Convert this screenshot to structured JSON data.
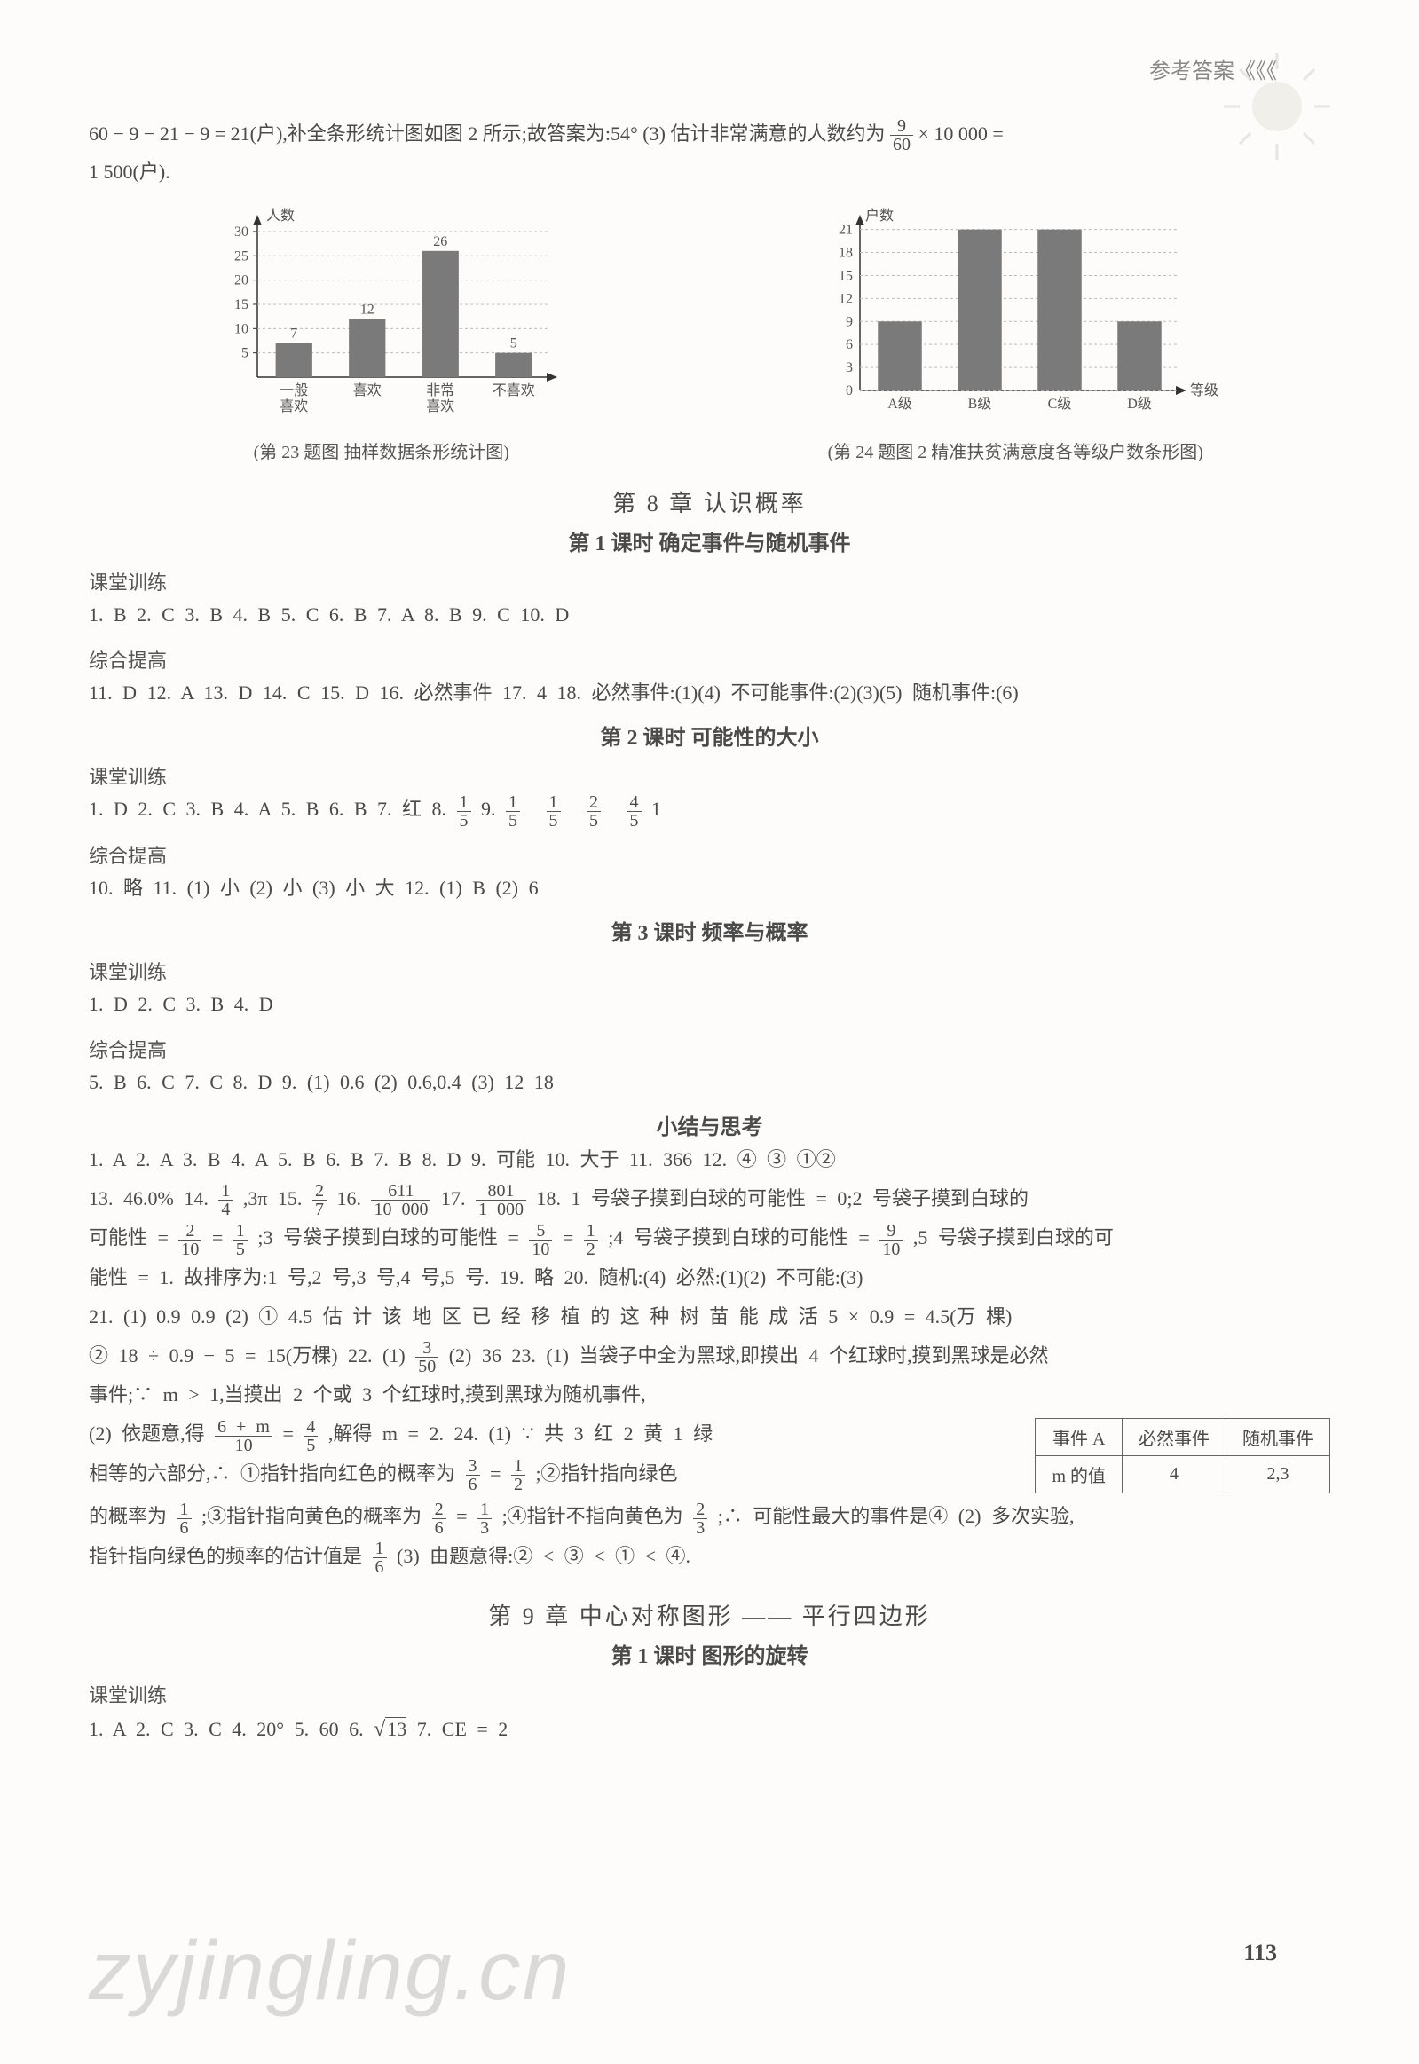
{
  "header": {
    "title": "参考答案《《《"
  },
  "intro": {
    "line1_a": "60 − 9 − 21 − 9 = 21(户),补全条形统计图如图 2 所示;故答案为:54°   (3) 估计非常满意的人数约为",
    "frac": {
      "num": "9",
      "den": "60"
    },
    "line1_b": " × 10 000 =",
    "line2": "1 500(户)."
  },
  "chart1": {
    "type": "bar",
    "y_label": "人数",
    "categories": [
      "一般\n喜欢",
      "喜欢",
      "非常\n喜欢",
      "不喜欢"
    ],
    "values": [
      7,
      12,
      26,
      5
    ],
    "value_labels": [
      "7",
      "12",
      "26",
      "5"
    ],
    "yticks": [
      5,
      10,
      15,
      20,
      25,
      30
    ],
    "ylim": [
      0,
      32
    ],
    "bar_color": "#7a7a7a",
    "axis_color": "#333333",
    "grid_color": "#bbbbbb",
    "font_size": 16,
    "caption": "(第 23 题图    抽样数据条形统计图)"
  },
  "chart2": {
    "type": "bar",
    "y_label": "户数",
    "x_label": "等级",
    "categories": [
      "A级",
      "B级",
      "C级",
      "D级"
    ],
    "values": [
      9,
      21,
      21,
      9
    ],
    "yticks": [
      0,
      3,
      6,
      9,
      12,
      15,
      18,
      21
    ],
    "ylim": [
      0,
      22
    ],
    "bar_color": "#7a7a7a",
    "axis_color": "#333333",
    "grid_color": "#bbbbbb",
    "font_size": 16,
    "caption": "(第 24 题图 2    精准扶贫满意度各等级户数条形图)"
  },
  "chapter8": {
    "title": "第 8 章    认识概率",
    "s1": {
      "title": "第 1 课时    确定事件与随机事件",
      "ktxl_label": "课堂训练",
      "ktxl": "1. B   2. C   3. B   4. B   5. C   6. B   7. A   8. B   9. C   10. D",
      "zhtg_label": "综合提高",
      "zhtg": "11. D   12. A   13. D   14. C   15. D   16. 必然事件   17. 4   18. 必然事件:(1)(4)    不可能事件:(2)(3)(5)    随机事件:(6)"
    },
    "s2": {
      "title": "第 2 课时    可能性的大小",
      "ktxl_label": "课堂训练",
      "ktxl_a": "1. D   2. C   3. B   4. A   5. B   6. B   7. 红   8. ",
      "f1": {
        "n": "1",
        "d": "5"
      },
      "ktxl_b": "   9. ",
      "f2": {
        "n": "1",
        "d": "5"
      },
      "f3": {
        "n": "1",
        "d": "5"
      },
      "f4": {
        "n": "2",
        "d": "5"
      },
      "f5": {
        "n": "4",
        "d": "5"
      },
      "ktxl_c": "   1",
      "zhtg_label": "综合提高",
      "zhtg": "10. 略   11. (1) 小   (2) 小   (3) 小    大   12. (1) B   (2) 6"
    },
    "s3": {
      "title": "第 3 课时    频率与概率",
      "ktxl_label": "课堂训练",
      "ktxl": "1. D   2. C   3. B   4. D",
      "zhtg_label": "综合提高",
      "zhtg": "5. B   6. C   7. C   8. D   9. (1) 0.6   (2) 0.6,0.4   (3) 12   18"
    },
    "s4": {
      "title": "小结与思考",
      "l1": "1. A   2. A   3. B   4. A   5. B   6. B   7. B   8. D   9. 可能   10. 大于   11. 366   12. ④   ③   ①②",
      "l2_a": "13. 46.0%   14. ",
      "l2_f1": {
        "n": "1",
        "d": "4"
      },
      "l2_b": ",3π   15. ",
      "l2_f2": {
        "n": "2",
        "d": "7"
      },
      "l2_c": "   16. ",
      "l2_f3": {
        "n": "611",
        "d": "10 000"
      },
      "l2_d": "   17. ",
      "l2_f4": {
        "n": "801",
        "d": "1 000"
      },
      "l2_e": "   18. 1 号袋子摸到白球的可能性 = 0;2 号袋子摸到白球的",
      "l3_a": "可能性 = ",
      "l3_f1": {
        "n": "2",
        "d": "10"
      },
      "l3_b": " = ",
      "l3_f2": {
        "n": "1",
        "d": "5"
      },
      "l3_c": ";3 号袋子摸到白球的可能性 = ",
      "l3_f3": {
        "n": "5",
        "d": "10"
      },
      "l3_d": " = ",
      "l3_f4": {
        "n": "1",
        "d": "2"
      },
      "l3_e": ";4 号袋子摸到白球的可能性 = ",
      "l3_f5": {
        "n": "9",
        "d": "10"
      },
      "l3_f": ",5 号袋子摸到白球的可",
      "l4": "能性 = 1. 故排序为:1 号,2 号,3 号,4 号,5 号.   19. 略   20. 随机:(4)    必然:(1)(2)    不可能:(3)",
      "l5": "21. (1) 0.9   0.9   (2) ①  4.5    估 计 该 地 区 已 经 移 植 的 这 种 树 苗 能 成 活 5 × 0.9 = 4.5(万 棵)",
      "l6_a": "② 18 ÷ 0.9 − 5 = 15(万棵)   22. (1) ",
      "l6_f1": {
        "n": "3",
        "d": "50"
      },
      "l6_b": "   (2) 36   23. (1) 当袋子中全为黑球,即摸出 4 个红球时,摸到黑球是必然",
      "l7": "事件;∵ m > 1,当摸出 2 个或 3 个红球时,摸到黑球为随机事件,",
      "table": {
        "h1": "事件 A",
        "h2": "必然事件",
        "h3": "随机事件",
        "r1": "m 的值",
        "r2": "4",
        "r3": "2,3"
      },
      "l8_a": "(2) 依题意,得",
      "l8_f1": {
        "n": "6 + m",
        "d": "10"
      },
      "l8_b": " = ",
      "l8_f2": {
        "n": "4",
        "d": "5"
      },
      "l8_c": ",解得 m = 2.   24. (1) ∵ 共 3 红 2 黄 1 绿",
      "l9_a": "相等的六部分,∴ ①指针指向红色的概率为",
      "l9_f1": {
        "n": "3",
        "d": "6"
      },
      "l9_b": " = ",
      "l9_f2": {
        "n": "1",
        "d": "2"
      },
      "l9_c": ";②指针指向绿色",
      "l10_a": "的概率为",
      "l10_f1": {
        "n": "1",
        "d": "6"
      },
      "l10_b": ";③指针指向黄色的概率为",
      "l10_f2": {
        "n": "2",
        "d": "6"
      },
      "l10_c": " = ",
      "l10_f3": {
        "n": "1",
        "d": "3"
      },
      "l10_d": ";④指针不指向黄色为",
      "l10_f4": {
        "n": "2",
        "d": "3"
      },
      "l10_e": ";∴ 可能性最大的事件是④   (2) 多次实验,",
      "l11_a": "指针指向绿色的频率的估计值是",
      "l11_f1": {
        "n": "1",
        "d": "6"
      },
      "l11_b": "   (3) 由题意得:② < ③ < ① < ④."
    }
  },
  "chapter9": {
    "title": "第 9 章    中心对称图形 —— 平行四边形",
    "s1": {
      "title": "第 1 课时    图形的旋转",
      "ktxl_label": "课堂训练",
      "ktxl_a": "1. A   2. C   3. C   4. 20°   5. 60   6. ",
      "sqrt": "13",
      "ktxl_b": "   7. CE = 2"
    }
  },
  "page_number": "113",
  "watermark": "zyjingling.cn"
}
